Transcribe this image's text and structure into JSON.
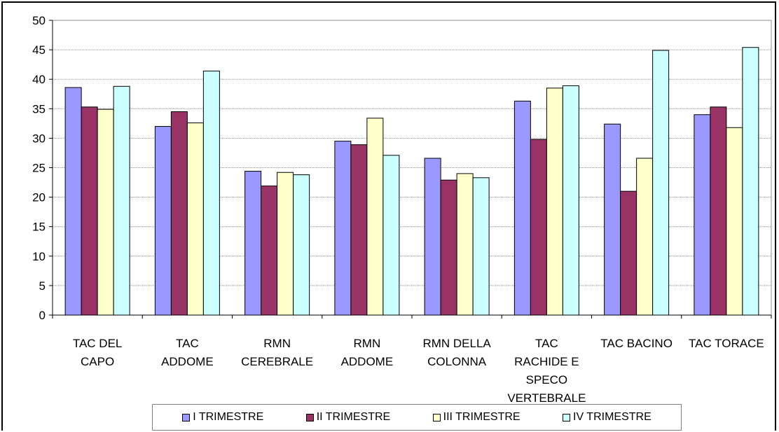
{
  "chart_data": {
    "type": "bar",
    "title": "",
    "xlabel": "",
    "ylabel": "",
    "ylim": [
      0,
      50
    ],
    "yticks": [
      0,
      5,
      10,
      15,
      20,
      25,
      30,
      35,
      40,
      45,
      50
    ],
    "grid": "horizontal",
    "legend_position": "bottom",
    "categories": [
      [
        "TAC DEL",
        "CAPO"
      ],
      [
        "TAC",
        "ADDOME"
      ],
      [
        "RMN",
        "CEREBRALE"
      ],
      [
        "RMN",
        "ADDOME"
      ],
      [
        "RMN DELLA",
        "COLONNA"
      ],
      [
        "TAC",
        "RACHIDE E",
        "SPECO",
        "VERTEBRALE"
      ],
      [
        "TAC BACINO"
      ],
      [
        "TAC TORACE"
      ]
    ],
    "series": [
      {
        "name": "I TRIMESTRE",
        "color": "#9999ff",
        "values": [
          38.6,
          32.0,
          24.4,
          29.5,
          26.6,
          36.3,
          32.4,
          34.0
        ]
      },
      {
        "name": "II TRIMESTRE",
        "color": "#993366",
        "values": [
          35.3,
          34.5,
          21.9,
          28.9,
          22.9,
          29.8,
          21.0,
          35.3
        ]
      },
      {
        "name": "III TRIMESTRE",
        "color": "#ffffcc",
        "values": [
          34.9,
          32.6,
          24.2,
          33.4,
          24.0,
          38.5,
          26.6,
          31.8
        ]
      },
      {
        "name": "IV TRIMESTRE",
        "color": "#ccffff",
        "values": [
          38.8,
          41.4,
          23.8,
          27.1,
          23.3,
          38.9,
          44.9,
          45.4
        ]
      }
    ]
  }
}
